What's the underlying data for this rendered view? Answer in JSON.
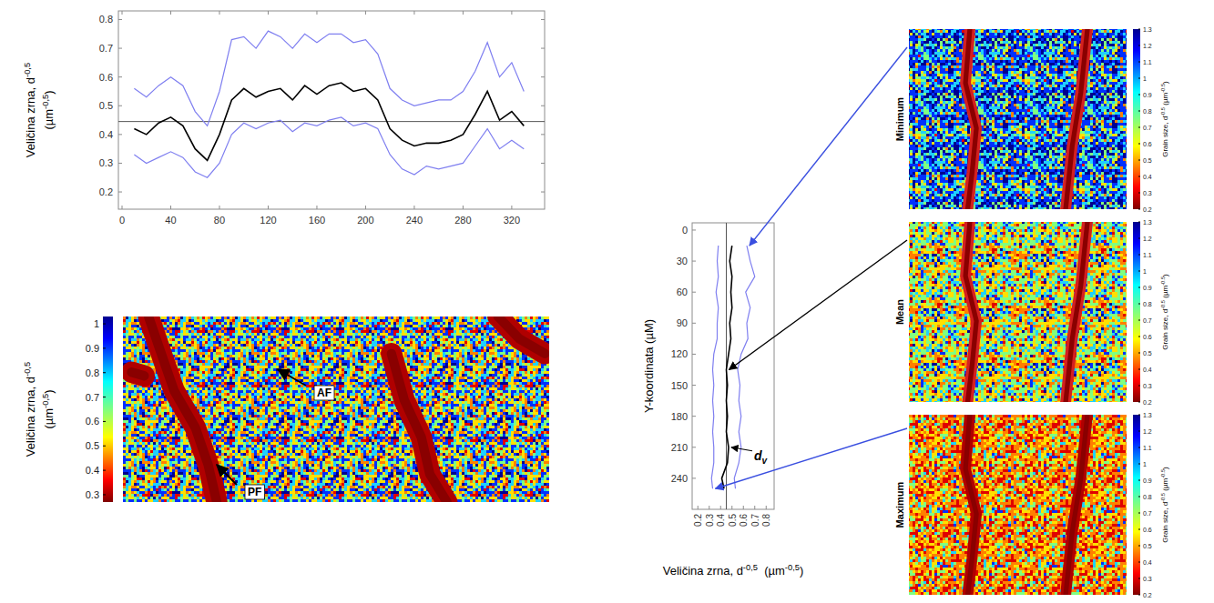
{
  "chart_data": [
    {
      "type": "line",
      "ylabel": [
        [
          "Veličina zrna, d",
          "-0,5"
        ],
        [
          "(µm",
          "-0,5",
          ")"
        ]
      ],
      "x": [
        10,
        20,
        30,
        40,
        50,
        60,
        70,
        80,
        90,
        100,
        110,
        120,
        130,
        140,
        150,
        160,
        170,
        180,
        190,
        200,
        210,
        220,
        230,
        240,
        250,
        260,
        270,
        280,
        290,
        300,
        310,
        320,
        330
      ],
      "xlim": [
        -3,
        347
      ],
      "ylim": [
        0.14,
        0.83
      ],
      "xticks": [
        0,
        40,
        80,
        120,
        160,
        200,
        240,
        280,
        320
      ],
      "yticks": [
        0.2,
        0.3,
        0.4,
        0.5,
        0.6,
        0.7,
        0.8
      ],
      "reference_value": 0.445,
      "series": [
        {
          "color": "#7f7ff0",
          "values": [
            0.56,
            0.53,
            0.57,
            0.6,
            0.57,
            0.48,
            0.43,
            0.55,
            0.73,
            0.74,
            0.7,
            0.76,
            0.74,
            0.7,
            0.75,
            0.72,
            0.75,
            0.75,
            0.72,
            0.73,
            0.68,
            0.56,
            0.52,
            0.5,
            0.51,
            0.52,
            0.52,
            0.55,
            0.62,
            0.72,
            0.6,
            0.65,
            0.55
          ]
        },
        {
          "color": "#000000",
          "values": [
            0.42,
            0.4,
            0.44,
            0.46,
            0.43,
            0.35,
            0.31,
            0.4,
            0.52,
            0.56,
            0.53,
            0.55,
            0.56,
            0.52,
            0.57,
            0.54,
            0.57,
            0.58,
            0.55,
            0.56,
            0.52,
            0.42,
            0.38,
            0.36,
            0.37,
            0.37,
            0.38,
            0.4,
            0.47,
            0.55,
            0.45,
            0.48,
            0.43
          ]
        },
        {
          "color": "#7f7ff0",
          "values": [
            0.33,
            0.3,
            0.32,
            0.34,
            0.32,
            0.27,
            0.25,
            0.3,
            0.4,
            0.44,
            0.42,
            0.44,
            0.45,
            0.41,
            0.44,
            0.43,
            0.45,
            0.46,
            0.43,
            0.44,
            0.42,
            0.33,
            0.28,
            0.26,
            0.29,
            0.28,
            0.29,
            0.3,
            0.36,
            0.42,
            0.35,
            0.38,
            0.35
          ]
        }
      ]
    },
    {
      "type": "image",
      "ylabel": [
        [
          "Veličina zrna, d",
          "-0,5"
        ],
        [
          "(µm",
          "-0,5",
          ")"
        ]
      ],
      "colorbar": {
        "range": [
          0.27,
          1.03
        ],
        "ticks": [
          0.3,
          0.4,
          0.5,
          0.6,
          0.7,
          0.8,
          0.9,
          1
        ]
      },
      "annotations": [
        {
          "text": "AF"
        },
        {
          "text": "PF"
        }
      ]
    },
    {
      "type": "line",
      "xlabel": [
        [
          "Veličina zrna, d",
          "-0,5",
          "  (µm",
          "-0,5",
          ")"
        ]
      ],
      "ylabel": "Y-koordinata (µM)",
      "y": [
        15,
        30,
        45,
        60,
        75,
        90,
        105,
        120,
        135,
        150,
        165,
        180,
        195,
        210,
        225,
        240,
        250
      ],
      "xlim": [
        0.15,
        0.87
      ],
      "ylim": [
        -7,
        270
      ],
      "xticks": [
        0.2,
        0.3,
        0.4,
        0.5,
        0.6,
        0.7,
        0.8
      ],
      "yticks": [
        0,
        30,
        60,
        90,
        120,
        150,
        180,
        210,
        240
      ],
      "reference_value": 0.45,
      "series": [
        {
          "color": "#7f7ff0",
          "values": [
            0.63,
            0.66,
            0.7,
            0.62,
            0.66,
            0.63,
            0.64,
            0.58,
            0.55,
            0.57,
            0.56,
            0.58,
            0.56,
            0.58,
            0.56,
            0.52,
            0.53
          ]
        },
        {
          "color": "#000000",
          "values": [
            0.5,
            0.48,
            0.5,
            0.49,
            0.5,
            0.48,
            0.49,
            0.47,
            0.45,
            0.46,
            0.45,
            0.46,
            0.45,
            0.47,
            0.46,
            0.41,
            0.43
          ]
        },
        {
          "color": "#7f7ff0",
          "values": [
            0.38,
            0.37,
            0.38,
            0.36,
            0.38,
            0.37,
            0.37,
            0.34,
            0.33,
            0.34,
            0.33,
            0.34,
            0.33,
            0.34,
            0.34,
            0.32,
            0.33
          ]
        }
      ],
      "annotation": {
        "text": "d",
        "subscript": "v"
      },
      "panels": [
        {
          "title": "Minimum"
        },
        {
          "title": "Mean"
        },
        {
          "title": "Maximum"
        }
      ],
      "colorbar": {
        "range": [
          0.2,
          1.3
        ],
        "ticks": [
          0.2,
          0.3,
          0.4,
          0.5,
          0.6,
          0.7,
          0.8,
          0.9,
          1,
          1.1,
          1.2,
          1.3
        ],
        "label": [
          [
            "Grain size, d",
            "-0.5",
            " (µm",
            "-0.5",
            ")"
          ]
        ]
      }
    }
  ]
}
